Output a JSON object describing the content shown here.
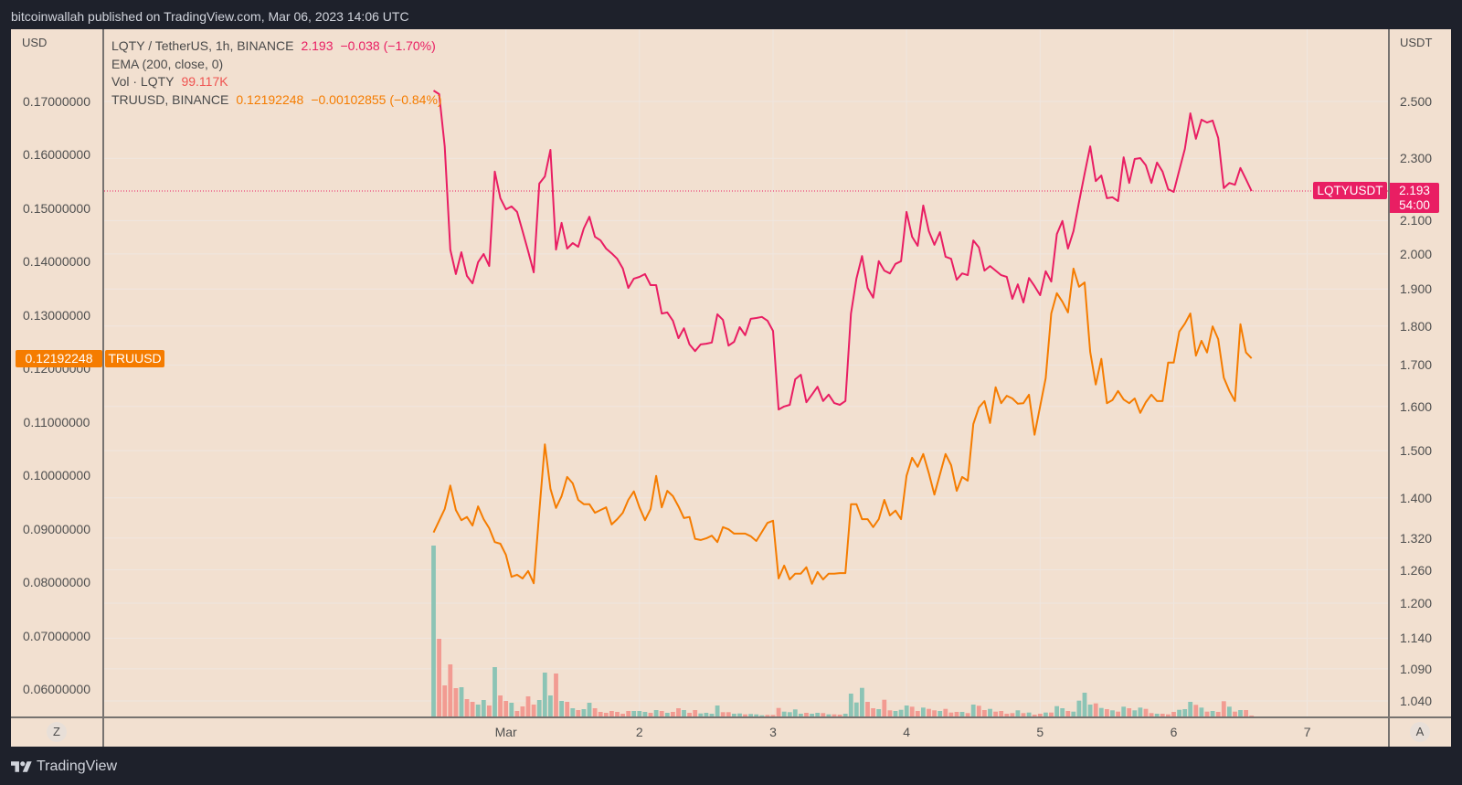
{
  "header": {
    "publish_text": "bitcoinwallah published on TradingView.com, Mar 06, 2023 14:06 UTC"
  },
  "legend": {
    "main": {
      "title": "LQTY / TetherUS, 1h, BINANCE",
      "last": "2.193",
      "change": "−0.038 (−1.70%)"
    },
    "ema": {
      "title": "EMA (200, close, 0)"
    },
    "volume": {
      "title": "Vol · LQTY",
      "last": "99.117K"
    },
    "compare": {
      "title": "TRUUSD, BINANCE",
      "last": "0.12192248",
      "change": "−0.00102855 (−0.84%)"
    }
  },
  "axes": {
    "left_unit": "USD",
    "right_unit": "USDT"
  },
  "price_labels": {
    "lqty": {
      "symbol": "LQTYUSDT",
      "price": "2.193",
      "countdown": "54:00"
    },
    "tru": {
      "symbol": "TRUUSD",
      "price": "0.12192248"
    }
  },
  "buttons": {
    "left_scale": "Z",
    "auto_scale": "A"
  },
  "footer": {
    "logo_text": "TradingView"
  },
  "colors": {
    "background": "#f2e0d0",
    "frame": "#1e212b",
    "grid": "#efe6df",
    "lqty": "#e91e63",
    "tru": "#f57c00",
    "volume_text": "#ef5350",
    "volume_up": "#8cc4b5",
    "volume_down": "#f29b92",
    "axis_text": "#4f4f4f"
  },
  "chart_data": {
    "type": "line",
    "title": "LQTY / TetherUS, 1h, BINANCE compared with TRUUSD, BINANCE",
    "interval": "1h",
    "x_start": "Feb 28 11:00",
    "x_end": "Mar 6 14:00",
    "xlabel": "",
    "ylabel": "",
    "grid": true,
    "legend_position": "top-left",
    "x_ticks": [
      {
        "label": "Mar",
        "index": 13
      },
      {
        "label": "2",
        "index": 37
      },
      {
        "label": "3",
        "index": 61
      },
      {
        "label": "4",
        "index": 85
      },
      {
        "label": "5",
        "index": 109
      },
      {
        "label": "6",
        "index": 133
      },
      {
        "label": "7",
        "index": 157
      }
    ],
    "left_axis": {
      "unit": "USD",
      "scale": "linear",
      "range": [
        0.0547,
        0.1835
      ],
      "ticks": [
        "0.17000000",
        "0.16000000",
        "0.15000000",
        "0.14000000",
        "0.13000000",
        "0.12000000",
        "0.11000000",
        "0.10000000",
        "0.09000000",
        "0.08000000",
        "0.07000000",
        "0.06000000"
      ]
    },
    "right_axis": {
      "unit": "USDT",
      "scale": "log",
      "range": [
        1.015,
        2.778
      ],
      "ticks": [
        "2.500",
        "2.300",
        "2.100",
        "2.000",
        "1.900",
        "1.800",
        "1.700",
        "1.600",
        "1.500",
        "1.400",
        "1.320",
        "1.260",
        "1.200",
        "1.140",
        "1.090",
        "1.040"
      ]
    },
    "series": [
      {
        "name": "LQTYUSDT",
        "axis": "right",
        "type": "line",
        "color": "#e91e63",
        "last": 2.193,
        "values": [
          2.54,
          2.527,
          2.341,
          2.013,
          1.942,
          2.005,
          1.937,
          1.916,
          1.976,
          2.0,
          1.965,
          2.256,
          2.17,
          2.135,
          2.144,
          2.127,
          2.068,
          2.008,
          1.947,
          2.217,
          2.24,
          2.329,
          2.013,
          2.093,
          2.016,
          2.032,
          2.021,
          2.076,
          2.112,
          2.051,
          2.04,
          2.016,
          2.002,
          1.986,
          1.958,
          1.903,
          1.929,
          1.934,
          1.942,
          1.911,
          1.911,
          1.833,
          1.836,
          1.814,
          1.768,
          1.794,
          1.752,
          1.735,
          1.752,
          1.754,
          1.757,
          1.831,
          1.816,
          1.749,
          1.759,
          1.797,
          1.776,
          1.819,
          1.821,
          1.824,
          1.814,
          1.787,
          1.593,
          1.6,
          1.604,
          1.665,
          1.676,
          1.61,
          1.628,
          1.647,
          1.613,
          1.628,
          1.608,
          1.604,
          1.613,
          1.833,
          1.929,
          1.994,
          1.903,
          1.876,
          1.979,
          1.952,
          1.944,
          1.971,
          1.979,
          2.127,
          2.051,
          2.024,
          2.147,
          2.068,
          2.027,
          2.065,
          1.992,
          1.986,
          1.926,
          1.944,
          1.939,
          2.04,
          2.019,
          1.952,
          1.965,
          1.952,
          1.939,
          1.934,
          1.873,
          1.913,
          1.863,
          1.931,
          1.908,
          1.883,
          1.95,
          1.921,
          2.059,
          2.099,
          2.016,
          2.068,
          2.158,
          2.249,
          2.341,
          2.225,
          2.243,
          2.17,
          2.173,
          2.161,
          2.304,
          2.219,
          2.298,
          2.301,
          2.277,
          2.219,
          2.286,
          2.256,
          2.199,
          2.19,
          2.261,
          2.332,
          2.457,
          2.367,
          2.434,
          2.424,
          2.431,
          2.37,
          2.202,
          2.219,
          2.213,
          2.268,
          2.231,
          2.193
        ]
      },
      {
        "name": "TRUUSD",
        "axis": "left",
        "type": "line",
        "color": "#f57c00",
        "last": 0.12192248,
        "values": [
          0.0893,
          0.0915,
          0.0937,
          0.0981,
          0.0935,
          0.0916,
          0.0922,
          0.0906,
          0.0942,
          0.0918,
          0.0901,
          0.0875,
          0.0872,
          0.0851,
          0.081,
          0.0814,
          0.0807,
          0.0821,
          0.0798,
          0.0932,
          0.1058,
          0.0975,
          0.0939,
          0.0961,
          0.0997,
          0.0985,
          0.0954,
          0.0946,
          0.0946,
          0.093,
          0.0935,
          0.094,
          0.0908,
          0.0918,
          0.093,
          0.0954,
          0.097,
          0.094,
          0.0916,
          0.0937,
          0.0999,
          0.094,
          0.0971,
          0.0961,
          0.0942,
          0.092,
          0.0922,
          0.0881,
          0.0879,
          0.0882,
          0.0887,
          0.0875,
          0.0903,
          0.0899,
          0.0891,
          0.0891,
          0.0891,
          0.0886,
          0.0877,
          0.0894,
          0.0911,
          0.0915,
          0.0807,
          0.0831,
          0.0805,
          0.0816,
          0.0816,
          0.0828,
          0.0797,
          0.0819,
          0.0805,
          0.0816,
          0.0816,
          0.0817,
          0.0817,
          0.0946,
          0.0946,
          0.0918,
          0.0918,
          0.0903,
          0.0918,
          0.0954,
          0.0925,
          0.0934,
          0.0918,
          0.0999,
          0.1033,
          0.1016,
          0.104,
          0.1004,
          0.0964,
          0.1002,
          0.104,
          0.1019,
          0.0971,
          0.0997,
          0.099,
          0.1096,
          0.1127,
          0.1139,
          0.1098,
          0.1165,
          0.1135,
          0.1149,
          0.1144,
          0.1134,
          0.1135,
          0.1151,
          0.1076,
          0.1129,
          0.1182,
          0.1303,
          0.1341,
          0.1325,
          0.1305,
          0.1387,
          0.1353,
          0.1361,
          0.1231,
          0.117,
          0.1218,
          0.1135,
          0.1141,
          0.1158,
          0.1142,
          0.1135,
          0.1144,
          0.1117,
          0.1137,
          0.1151,
          0.1139,
          0.1139,
          0.1211,
          0.1211,
          0.1269,
          0.1284,
          0.1303,
          0.1224,
          0.1252,
          0.123,
          0.1279,
          0.1255,
          0.1183,
          0.1158,
          0.1139,
          0.1283,
          0.123,
          0.1219
        ]
      },
      {
        "name": "Vol · LQTY",
        "type": "bar",
        "unit": "K",
        "last": "99.117K",
        "values": [
          18513,
          8415,
          3366,
          5643,
          3069,
          3168,
          1881,
          1584,
          1287,
          1782,
          1188,
          5346,
          2277,
          1683,
          1485,
          594,
          1089,
          2178,
          1287,
          1782,
          4752,
          2277,
          4653,
          1683,
          1584,
          891,
          693,
          792,
          1485,
          891,
          495,
          396,
          594,
          495,
          297,
          594,
          594,
          594,
          495,
          396,
          693,
          594,
          396,
          495,
          891,
          693,
          396,
          693,
          327,
          396,
          297,
          1188,
          465,
          465,
          297,
          327,
          228,
          267,
          228,
          129,
          168,
          168,
          921,
          525,
          465,
          762,
          297,
          396,
          297,
          396,
          366,
          228,
          228,
          198,
          297,
          2475,
          1515,
          3099,
          1584,
          891,
          792,
          1812,
          663,
          594,
          723,
          1188,
          1059,
          594,
          960,
          822,
          663,
          594,
          822,
          426,
          495,
          495,
          366,
          1287,
          1158,
          693,
          822,
          525,
          594,
          297,
          366,
          663,
          366,
          426,
          198,
          297,
          426,
          426,
          1119,
          891,
          594,
          525,
          1713,
          2574,
          1287,
          1416,
          921,
          792,
          663,
          525,
          1059,
          891,
          663,
          960,
          822,
          366,
          297,
          297,
          228,
          495,
          723,
          792,
          1584,
          1257,
          960,
          525,
          594,
          495,
          1653,
          1059,
          525,
          693,
          693,
          99.117
        ],
        "directions": [
          "u",
          "d",
          "d",
          "d",
          "d",
          "u",
          "d",
          "d",
          "u",
          "u",
          "d",
          "u",
          "d",
          "d",
          "u",
          "d",
          "d",
          "d",
          "d",
          "u",
          "u",
          "u",
          "d",
          "u",
          "d",
          "u",
          "d",
          "u",
          "u",
          "d",
          "d",
          "d",
          "d",
          "d",
          "d",
          "d",
          "u",
          "u",
          "u",
          "d",
          "u",
          "d",
          "u",
          "d",
          "d",
          "u",
          "d",
          "d",
          "u",
          "u",
          "u",
          "u",
          "d",
          "d",
          "u",
          "u",
          "d",
          "u",
          "u",
          "u",
          "d",
          "d",
          "d",
          "u",
          "u",
          "u",
          "u",
          "d",
          "u",
          "u",
          "d",
          "u",
          "d",
          "d",
          "u",
          "u",
          "u",
          "u",
          "d",
          "d",
          "u",
          "d",
          "d",
          "u",
          "u",
          "u",
          "d",
          "d",
          "u",
          "d",
          "d",
          "u",
          "d",
          "d",
          "d",
          "u",
          "d",
          "u",
          "d",
          "d",
          "u",
          "d",
          "d",
          "d",
          "d",
          "u",
          "d",
          "u",
          "d",
          "d",
          "u",
          "d",
          "u",
          "u",
          "d",
          "u",
          "u",
          "u",
          "u",
          "d",
          "u",
          "d",
          "u",
          "d",
          "u",
          "d",
          "u",
          "u",
          "d",
          "d",
          "u",
          "d",
          "d",
          "d",
          "u",
          "u",
          "u",
          "d",
          "u",
          "d",
          "u",
          "d",
          "d",
          "u",
          "d",
          "u",
          "d",
          "d"
        ]
      }
    ]
  }
}
